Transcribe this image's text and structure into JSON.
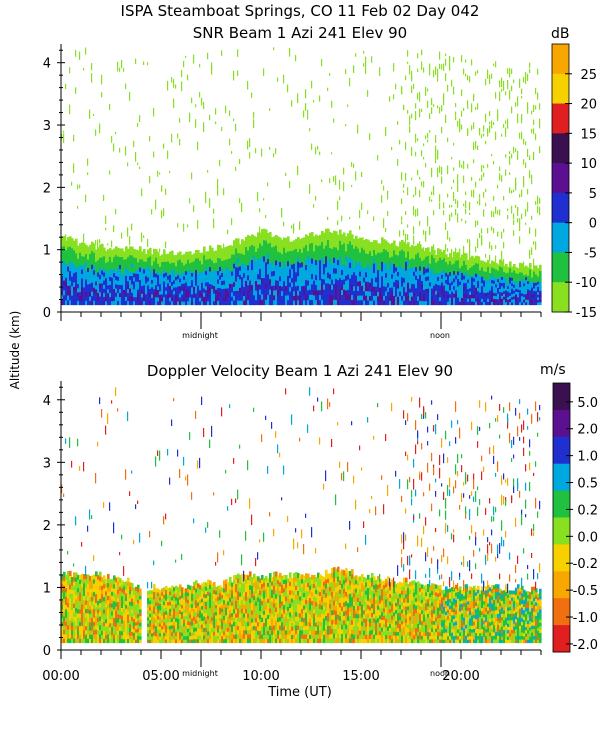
{
  "header": {
    "title": "ISPA Steamboat Springs, CO  11 Feb 02 Day 042"
  },
  "shared": {
    "ylabel": "Altitude (km)",
    "xlabel": "Time (UT)",
    "midnight_label": "midnight",
    "noon_label": "noon"
  },
  "chart_data": [
    {
      "type": "heatmap",
      "title": "SNR Beam 1 Azi 241 Elev 90",
      "ylabel": "Altitude (km)",
      "ylim": [
        0,
        4.3
      ],
      "yticks": [
        0,
        1,
        2,
        3,
        4
      ],
      "xlim": [
        0,
        24
      ],
      "midnight_hour": 7,
      "noon_hour": 19,
      "colorbar": {
        "unit": "dB",
        "labels": [
          "25",
          "20",
          "15",
          "10",
          "5",
          "0",
          "-5",
          "-10",
          "-15"
        ],
        "colors": [
          "#f7a700",
          "#f7d000",
          "#e02020",
          "#3a1050",
          "#5a1090",
          "#2030d0",
          "#00a8e0",
          "#20c040",
          "#88e020"
        ]
      },
      "layer_top_km": [
        1.2,
        1.1,
        1.05,
        1.0,
        1.0,
        0.95,
        0.95,
        1.0,
        1.05,
        1.15,
        1.3,
        1.2,
        1.15,
        1.3,
        1.3,
        1.2,
        1.15,
        1.1,
        1.05,
        0.95,
        0.9,
        0.85,
        0.8,
        0.75,
        0.7
      ]
    },
    {
      "type": "heatmap",
      "title": "Doppler Velocity Beam 1 Azi 241 Elev 90",
      "ylabel": "Altitude (km)",
      "xlabel": "Time (UT)",
      "ylim": [
        0,
        4.3
      ],
      "yticks": [
        0,
        1,
        2,
        3,
        4
      ],
      "xlim": [
        0,
        24
      ],
      "xticks": [
        0,
        5,
        10,
        15,
        20
      ],
      "xticklabels": [
        "00:00",
        "05:00",
        "10:00",
        "15:00",
        "20:00"
      ],
      "midnight_hour": 7,
      "noon_hour": 19,
      "colorbar": {
        "unit": "m/s",
        "labels": [
          "5.0",
          "2.0",
          "1.0",
          "0.5",
          "0.2",
          "0.0",
          "-0.2",
          "-0.5",
          "-1.0",
          "-2.0"
        ],
        "colors": [
          "#3a1050",
          "#5a1090",
          "#2030d0",
          "#00a8e0",
          "#20c040",
          "#88e020",
          "#f7d000",
          "#f7a700",
          "#f07010",
          "#e02020"
        ]
      },
      "layer_top_km": [
        1.25,
        1.2,
        1.2,
        1.15,
        1.0,
        1.0,
        1.0,
        1.1,
        1.05,
        1.2,
        1.2,
        1.2,
        1.2,
        1.2,
        1.3,
        1.2,
        1.15,
        1.1,
        1.1,
        1.0,
        1.0,
        1.0,
        1.0,
        1.0,
        0.95
      ]
    }
  ]
}
